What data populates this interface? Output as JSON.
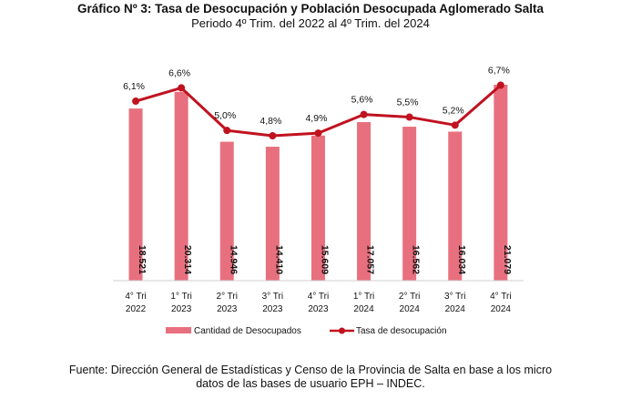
{
  "title": "Gráfico Nº 3: Tasa de Desocupación y Población Desocupada Aglomerado Salta",
  "subtitle": "Periodo 4º Trim. del 2022 al 4º Trim. del 2024",
  "source_line1": "Fuente: Dirección General de Estadísticas y Censo de la Provincia de Salta en base a los micro",
  "source_line2": "datos de las bases de usuario EPH – INDEC.",
  "colors": {
    "bar": "#E8707E",
    "line": "#C0121F"
  },
  "chart_data": {
    "type": "bar",
    "categories": [
      [
        "4° Tri",
        "2022"
      ],
      [
        "1° Tri",
        "2023"
      ],
      [
        "2° Tri",
        "2023"
      ],
      [
        "3° Tri",
        "2023"
      ],
      [
        "4° Tri",
        "2023"
      ],
      [
        "1° Tri",
        "2024"
      ],
      [
        "2° Tri",
        "2024"
      ],
      [
        "3° Tri",
        "2024"
      ],
      [
        "4° Tri",
        "2024"
      ]
    ],
    "series": [
      {
        "name": "Cantidad de Desocupados",
        "kind": "bar",
        "values": [
          18521,
          20314,
          14946,
          14410,
          15609,
          17057,
          16562,
          16034,
          21079
        ],
        "labels": [
          "18.521",
          "20.314",
          "14.946",
          "14.410",
          "15.609",
          "17.057",
          "16.562",
          "16.034",
          "21.079"
        ]
      },
      {
        "name": "Tasa de desocupación",
        "kind": "line",
        "values": [
          6.1,
          6.6,
          5.0,
          4.8,
          4.9,
          5.6,
          5.5,
          5.2,
          6.7
        ],
        "labels": [
          "6,1%",
          "6,6%",
          "5,0%",
          "4,8%",
          "4,9%",
          "5,6%",
          "5,5%",
          "5,2%",
          "6,7%"
        ]
      }
    ],
    "legend": "bottom",
    "grid": false
  }
}
